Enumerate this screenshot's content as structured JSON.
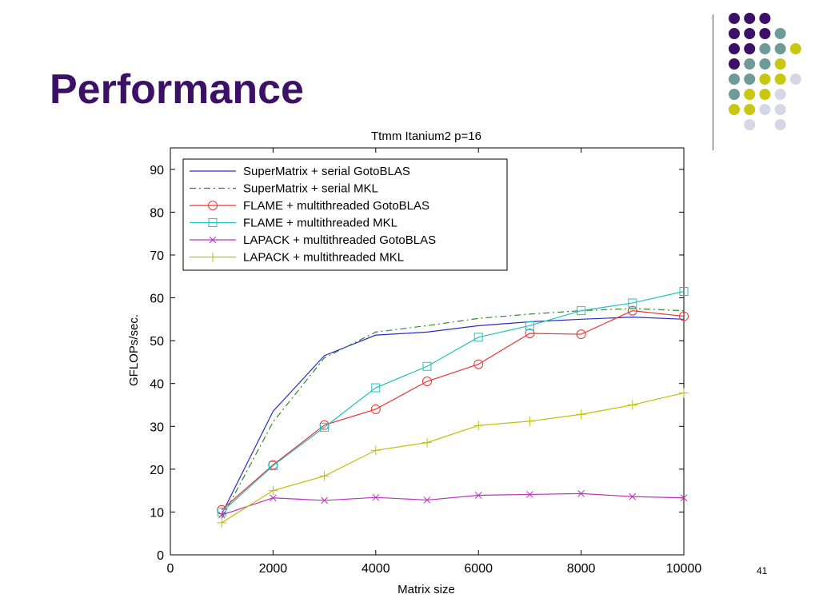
{
  "slide": {
    "title": "Performance",
    "page_number": "41",
    "accent_colors": [
      "#3b1066",
      "#6f9a9a",
      "#c8c814",
      "#d6d6e6"
    ]
  },
  "decoration": {
    "dot_rows": [
      [
        "purple",
        "purple",
        "purple",
        null,
        null
      ],
      [
        "purple",
        "purple",
        "purple",
        "teal",
        null
      ],
      [
        "purple",
        "purple",
        "teal",
        "teal",
        "yellow"
      ],
      [
        "purple",
        "teal",
        "teal",
        "yellow",
        null
      ],
      [
        "teal",
        "teal",
        "yellow",
        "yellow",
        "lavender"
      ],
      [
        "teal",
        "yellow",
        "yellow",
        "lavender",
        null
      ],
      [
        "yellow",
        "yellow",
        "lavender",
        "lavender",
        null
      ],
      [
        null,
        "lavender",
        null,
        "lavender",
        null
      ]
    ],
    "dot_colors": {
      "purple": "#3b1066",
      "teal": "#6f9a9a",
      "yellow": "#c8c814",
      "lavender": "#d6d6e6"
    }
  },
  "chart_data": {
    "type": "line",
    "title": "Ttmm  Itanium2 p=16",
    "xlabel": "Matrix size",
    "ylabel": "GFLOPs/sec.",
    "xlim": [
      0,
      10000
    ],
    "ylim": [
      0,
      95
    ],
    "xticks": [
      0,
      2000,
      4000,
      6000,
      8000,
      10000
    ],
    "xtick_labels": [
      "0",
      "2000",
      "4000",
      "6000",
      "8000",
      "10000"
    ],
    "yticks": [
      0,
      10,
      20,
      30,
      40,
      50,
      60,
      70,
      80,
      90
    ],
    "ytick_labels": [
      "0",
      "10",
      "20",
      "30",
      "40",
      "50",
      "60",
      "70",
      "80",
      "90"
    ],
    "grid": false,
    "legend_position": "top-left",
    "x": [
      1000,
      2000,
      3000,
      4000,
      5000,
      6000,
      7000,
      8000,
      9000,
      10000
    ],
    "series": [
      {
        "name": "SuperMatrix + serial GotoBLAS",
        "color": "#2a2ad0",
        "dash": "solid",
        "marker": "none",
        "values": [
          9.5,
          33.5,
          46.5,
          51.3,
          52,
          53.5,
          54.4,
          55,
          55.5,
          55
        ]
      },
      {
        "name": "SuperMatrix + serial MKL",
        "color": "#2e8b2e",
        "dash": "dashdot",
        "marker": "none",
        "values": [
          8.5,
          31,
          46,
          52,
          53.5,
          55.2,
          56.2,
          57,
          57.5,
          57
        ]
      },
      {
        "name": "FLAME + multithreaded GotoBLAS",
        "color": "#ee3333",
        "dash": "solid",
        "marker": "circle",
        "values": [
          10.5,
          21,
          30.3,
          34,
          40.5,
          44.5,
          51.7,
          51.5,
          57,
          55.7
        ]
      },
      {
        "name": "FLAME + multithreaded MKL",
        "color": "#22c0c0",
        "dash": "solid",
        "marker": "square",
        "values": [
          10,
          20.8,
          29.8,
          39,
          44,
          50.8,
          53.5,
          57,
          58.8,
          61.5
        ]
      },
      {
        "name": "LAPACK + multithreaded GotoBLAS",
        "color": "#c030c0",
        "dash": "solid",
        "marker": "x",
        "values": [
          9.3,
          13.3,
          12.7,
          13.4,
          12.8,
          13.9,
          14.1,
          14.3,
          13.6,
          13.3
        ]
      },
      {
        "name": "LAPACK + multithreaded MKL",
        "color": "#c0c000",
        "dash": "solid",
        "marker": "plus",
        "values": [
          7.5,
          15,
          18.4,
          24.4,
          26.2,
          30.2,
          31.2,
          32.8,
          35,
          37.8
        ]
      }
    ]
  }
}
